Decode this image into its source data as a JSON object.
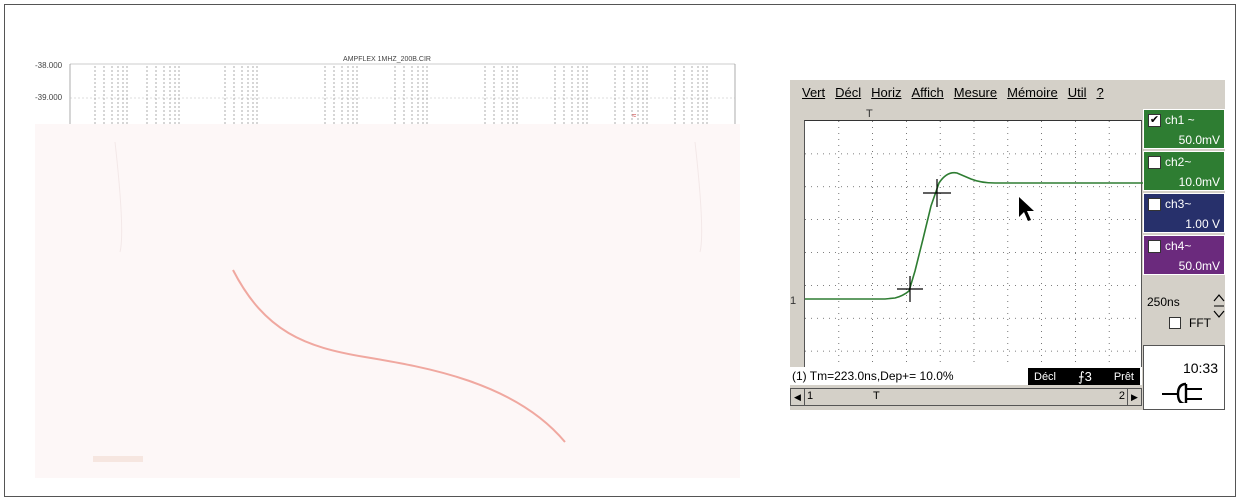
{
  "left_plot": {
    "title": "AMPFLEX 1MHZ_200B.CIR",
    "y_labels": [
      "-38.000",
      "-39.000"
    ]
  },
  "scope": {
    "menu": [
      "Vert",
      "Décl",
      "Horiz",
      "Affich",
      "Mesure",
      "Mémoire",
      "Util",
      "?"
    ],
    "trigger_marker": "T",
    "ch1_marker": "1",
    "channels": [
      {
        "name": "ch1 ~",
        "value": "50.0mV",
        "checked": true,
        "color": "#2e7d32"
      },
      {
        "name": "ch2~",
        "value": "10.0mV",
        "checked": false,
        "color": "#2e7d32"
      },
      {
        "name": "ch3~",
        "value": "1.00 V",
        "checked": false,
        "color": "#27306b"
      },
      {
        "name": "ch4~",
        "value": "50.0mV",
        "checked": false,
        "color": "#6b2a7d"
      }
    ],
    "timebase": "250ns",
    "fft_label": "FFT",
    "status_text": "(1) Tm=223.0ns,Dep+= 10.0%",
    "trigger_status": {
      "mode": "Décl",
      "icon": "⨍3",
      "state": "Prêt"
    },
    "scrollbar": {
      "left_label": "1",
      "cursor_label": "T",
      "right_label": "2"
    },
    "time": "10:33",
    "trace_color": "#2e7d32"
  }
}
